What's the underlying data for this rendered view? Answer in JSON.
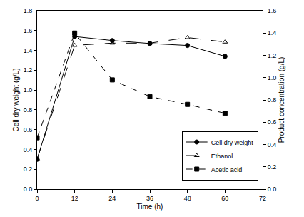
{
  "chart_data": {
    "type": "line",
    "x_label": "Time (h)",
    "y_label": "Cell dry weight (g/L)",
    "y2_label": "Product concentration (g/L)",
    "x": [
      0,
      12,
      24,
      36,
      48,
      60
    ],
    "xlim": [
      0,
      72
    ],
    "xticks": [
      0,
      12,
      24,
      36,
      48,
      60,
      72
    ],
    "ylim": [
      0,
      1.8
    ],
    "yticks": [
      {
        "value": 0,
        "label": "0.0"
      },
      {
        "value": 0.2,
        "label": "0.2"
      },
      {
        "value": 0.4,
        "label": "0.4"
      },
      {
        "value": 0.6,
        "label": "0.6"
      },
      {
        "value": 0.8,
        "label": "0.8"
      },
      {
        "value": 1,
        "label": "1.0"
      },
      {
        "value": 1.2,
        "label": "1.2"
      },
      {
        "value": 1.4,
        "label": "1.4"
      },
      {
        "value": 1.6,
        "label": "1.6"
      },
      {
        "value": 1.8,
        "label": "1.8"
      }
    ],
    "y2lim": [
      0,
      1.6
    ],
    "y2ticks": [
      {
        "value": 0,
        "label": "0.0"
      },
      {
        "value": 0.2,
        "label": "0.2"
      },
      {
        "value": 0.4,
        "label": "0.4"
      },
      {
        "value": 0.6,
        "label": "0.6"
      },
      {
        "value": 0.8,
        "label": "0.8"
      },
      {
        "value": 1,
        "label": "1.0"
      },
      {
        "value": 1.2,
        "label": "1.2"
      },
      {
        "value": 1.4,
        "label": "1.4"
      },
      {
        "value": 1.6,
        "label": "1.6"
      }
    ],
    "grid": false,
    "legend": "lower right",
    "series": [
      {
        "name": "Cell dry weight",
        "color": "#000000",
        "marker": "circle",
        "line_style": "solid",
        "values": [
          0.3,
          1.54,
          1.5,
          1.47,
          1.45,
          1.34
        ]
      },
      {
        "name": "Ethanol",
        "color": "#000000",
        "marker": "triangle-up-open",
        "line_style": "longdash",
        "axis": "y2",
        "values": [
          0.27,
          1.29,
          1.31,
          1.31,
          1.36,
          1.32
        ]
      },
      {
        "name": "Acetic acid",
        "color": "#000000",
        "marker": "square",
        "line_style": "dash",
        "axis": "y2",
        "values": [
          0.46,
          1.4,
          0.98,
          0.83,
          0.76,
          0.68
        ]
      }
    ]
  }
}
